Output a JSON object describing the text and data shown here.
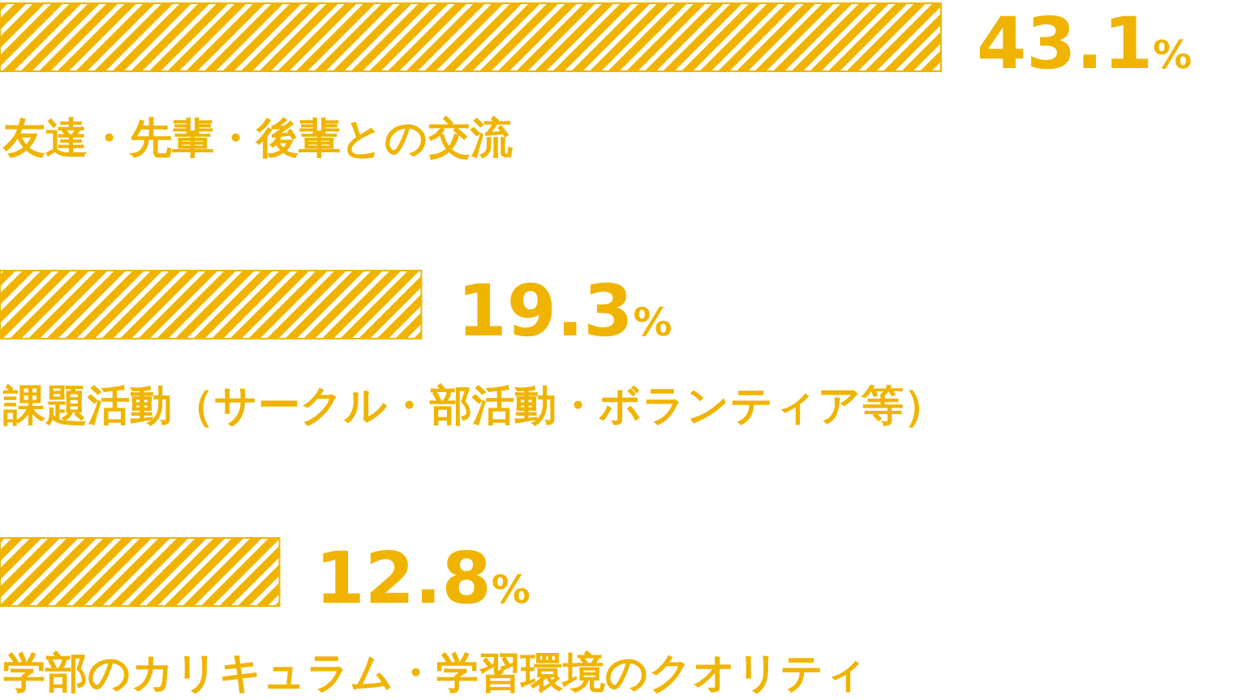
{
  "chart_data": {
    "type": "bar",
    "orientation": "horizontal",
    "categories": [
      "友達・先輩・後輩との交流",
      "課題活動（サークル・部活動・ボランティア等）",
      "学部のカリキュラム・学習環境のクオリティ"
    ],
    "values": [
      43.1,
      19.3,
      12.8
    ],
    "value_labels": [
      "43.1%",
      "19.3%",
      "12.8%"
    ],
    "color": "#f0b400"
  }
}
